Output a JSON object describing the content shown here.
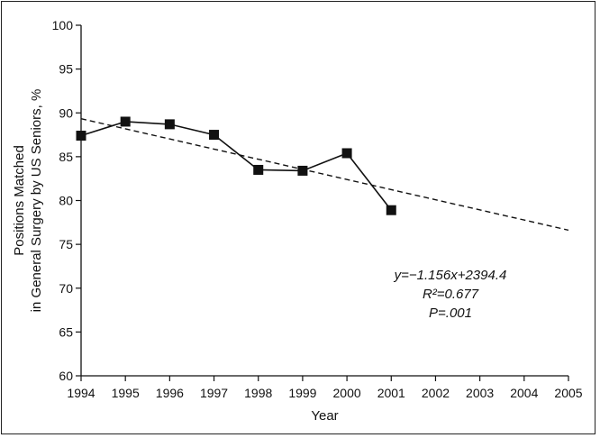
{
  "chart_data": {
    "type": "scatter",
    "title": "",
    "xlabel": "Year",
    "ylabel_lines": [
      "Positions Matched",
      "in General Surgery by US Seniors, %"
    ],
    "xlim": [
      1994,
      2005
    ],
    "ylim": [
      60,
      100
    ],
    "x_ticks": [
      1994,
      1995,
      1996,
      1997,
      1998,
      1999,
      2000,
      2001,
      2002,
      2003,
      2004,
      2005
    ],
    "y_ticks": [
      60,
      65,
      70,
      75,
      80,
      85,
      90,
      95,
      100
    ],
    "grid": false,
    "series": [
      {
        "style": "line-with-square-markers",
        "x": [
          1994,
          1995,
          1996,
          1997,
          1998,
          1999,
          2000,
          2001
        ],
        "y": [
          87.4,
          89.0,
          88.7,
          87.5,
          83.5,
          83.4,
          85.4,
          78.9
        ]
      }
    ],
    "trendline": {
      "style": "dashed",
      "slope": -1.156,
      "intercept": 2394.4,
      "x_range": [
        1994,
        2005
      ]
    },
    "annotation": {
      "equation": "y=−1.156x+2394.4",
      "r2": "R²=0.677",
      "p": "P=.001"
    }
  }
}
